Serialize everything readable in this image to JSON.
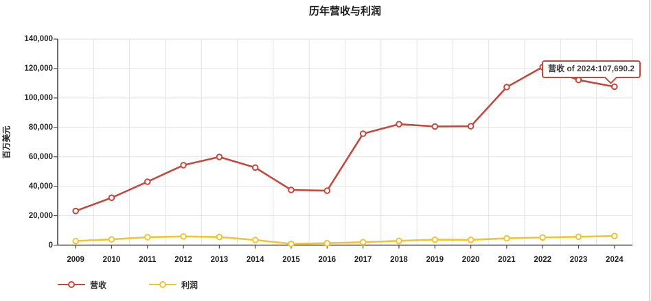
{
  "chart_data": {
    "type": "line",
    "title": "历年营收与利润",
    "ylabel": "百万美元",
    "xlabel": "",
    "categories": [
      "2009",
      "2010",
      "2011",
      "2012",
      "2013",
      "2014",
      "2015",
      "2016",
      "2017",
      "2018",
      "2019",
      "2020",
      "2021",
      "2022",
      "2023",
      "2024"
    ],
    "ylim": [
      0,
      140000
    ],
    "yticks": [
      0,
      20000,
      40000,
      60000,
      80000,
      100000,
      120000,
      140000
    ],
    "ytick_labels": [
      "0",
      "20,000",
      "40,000",
      "60,000",
      "80,000",
      "100,000",
      "120,000",
      "140,000"
    ],
    "grid": true,
    "legend_position": "bottom-left",
    "series": [
      {
        "name": "营收",
        "color": "#c4483d",
        "values": [
          23200,
          32200,
          43100,
          54300,
          59900,
          52700,
          37500,
          37000,
          75700,
          82200,
          80600,
          80800,
          107400,
          121000,
          112200,
          107690.2
        ]
      },
      {
        "name": "利润",
        "color": "#f1c431",
        "values": [
          2800,
          3900,
          5400,
          5900,
          5500,
          3500,
          900,
          1300,
          2000,
          2900,
          3700,
          3600,
          4600,
          5200,
          5700,
          6200
        ]
      }
    ],
    "tooltip": {
      "text": "营收 of 2024:107,690.2",
      "series": "营收",
      "category": "2024",
      "value": "107,690.2"
    }
  }
}
